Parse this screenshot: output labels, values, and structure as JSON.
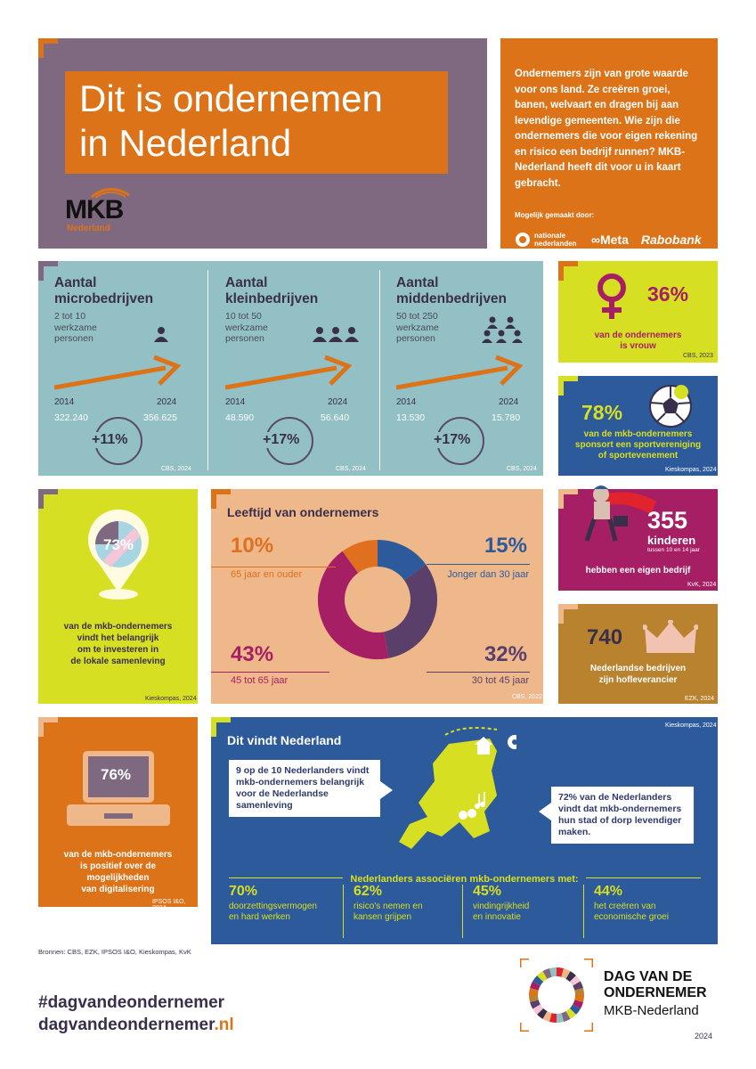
{
  "header": {
    "title_line1": "Dit is ondernemen",
    "title_line2": "in Nederland",
    "logo_text": "MKB",
    "logo_sub": "Nederland"
  },
  "intro": {
    "text": "Ondernemers zijn van grote waarde voor ons land. Ze creëren groei, banen, welvaart en dragen bij aan levendige gemeenten. Wie zijn die ondernemers die voor eigen rekening en risico een bedrijf runnen? MKB-Nederland heeft dit voor u in kaart gebracht.",
    "made_by": "Mogelijk gemaakt door:",
    "sponsors": [
      "nationale nederlanden",
      "Meta",
      "Rabobank"
    ]
  },
  "companies": [
    {
      "title_line1": "Aantal",
      "title_line2": "microbedrijven",
      "sub1": "2 tot 10",
      "sub2": "werkzame",
      "sub3": "personen",
      "year_start": "2014",
      "year_end": "2024",
      "val_start": "322.240",
      "val_end": "356.625",
      "growth": "+11%",
      "source": "CBS, 2024"
    },
    {
      "title_line1": "Aantal",
      "title_line2": "kleinbedrijven",
      "sub1": "10 tot 50",
      "sub2": "werkzame",
      "sub3": "personen",
      "year_start": "2014",
      "year_end": "2024",
      "val_start": "48.590",
      "val_end": "56.640",
      "growth": "+17%",
      "source": "CBS, 2024"
    },
    {
      "title_line1": "Aantal",
      "title_line2": "middenbedrijven",
      "sub1": "50 tot 250",
      "sub2": "werkzame",
      "sub3": "personen",
      "year_start": "2014",
      "year_end": "2024",
      "val_start": "13.530",
      "val_end": "15.780",
      "growth": "+17%",
      "source": "CBS, 2024"
    }
  ],
  "vrouw": {
    "pct": "36%",
    "line1": "van de ondernemers",
    "line2": "is vrouw",
    "source": "CBS, 2023"
  },
  "sport": {
    "pct": "78%",
    "line1": "van de mkb-ondernemers",
    "line2": "sponsort een sportvereniging",
    "line3": "of sportevenement",
    "source": "Kieskompas, 2024"
  },
  "kinderen": {
    "num": "355",
    "word": "kinderen",
    "age": "tussen 10 en 14 jaar",
    "line": "hebben een eigen bedrijf",
    "source": "KvK, 2024"
  },
  "hof": {
    "num": "740",
    "line1": "Nederlandse bedrijven",
    "line2": "zijn hofleverancier",
    "source": "EZK, 2024"
  },
  "lokaal": {
    "pct": "73%",
    "line1": "van de mkb-ondernemers",
    "line2": "vindt het belangrijk",
    "line3": "om te investeren in",
    "line4": "de lokale samenleving",
    "source": "Kieskompas, 2024"
  },
  "leeftijd": {
    "title": "Leeftijd van ondernemers",
    "source": "CBS, 2022",
    "segments": [
      {
        "pct": "10%",
        "label": "65 jaar en ouder",
        "value": 10,
        "color": "#e07020"
      },
      {
        "pct": "15%",
        "label": "Jonger dan 30 jaar",
        "value": 15,
        "color": "#2d5a9b"
      },
      {
        "pct": "32%",
        "label": "30 tot 45 jaar",
        "value": 32,
        "color": "#5a3f6a"
      },
      {
        "pct": "43%",
        "label": "45 tot 65 jaar",
        "value": 43,
        "color": "#a61f64"
      }
    ]
  },
  "digi": {
    "pct": "76%",
    "line1": "van de mkb-ondernemers",
    "line2": "is positief over de",
    "line3": "mogelijkheden",
    "line4": "van digitalisering",
    "source": "IPSOS I&O, 2024"
  },
  "vindt": {
    "title": "Dit vindt Nederland",
    "source": "Kieskompas, 2024",
    "bubble1": "9 op de 10 Nederlanders vindt mkb-ondernemers belangrijk voor de Nederlandse samenleving",
    "bubble2": "72% van de Nederlanders vindt dat mkb-ondernemers hun stad of dorp levendiger maken.",
    "assoc_title": "Nederlanders associëren mkb-ondernemers met:",
    "assoc": [
      {
        "pct": "70%",
        "l1": "doorzettingsvermogen",
        "l2": "en hard werken"
      },
      {
        "pct": "62%",
        "l1": "risico's nemen en",
        "l2": "kansen grijpen"
      },
      {
        "pct": "45%",
        "l1": "vindingrijkheid",
        "l2": "en innovatie"
      },
      {
        "pct": "44%",
        "l1": "het creëren van",
        "l2": "economische groei"
      }
    ]
  },
  "footer": {
    "bronnen": "Bronnen: CBS, EZK, IPSOS I&O, Kieskompas, KvK",
    "hashtag": "#dagvandeondernemer",
    "url_main": "dagvandeondernemer",
    "url_tld": ".nl",
    "logo_line1": "DAG VAN DE",
    "logo_line2": "ONDERNEMER",
    "logo_line3": "MKB-Nederland",
    "year": "2024"
  },
  "colors": {
    "orange": "#dd7318",
    "purple": "#7f6980",
    "teal": "#92c0c4",
    "lime": "#d7df23",
    "blue": "#2d5a9b",
    "magenta": "#a61f64"
  }
}
